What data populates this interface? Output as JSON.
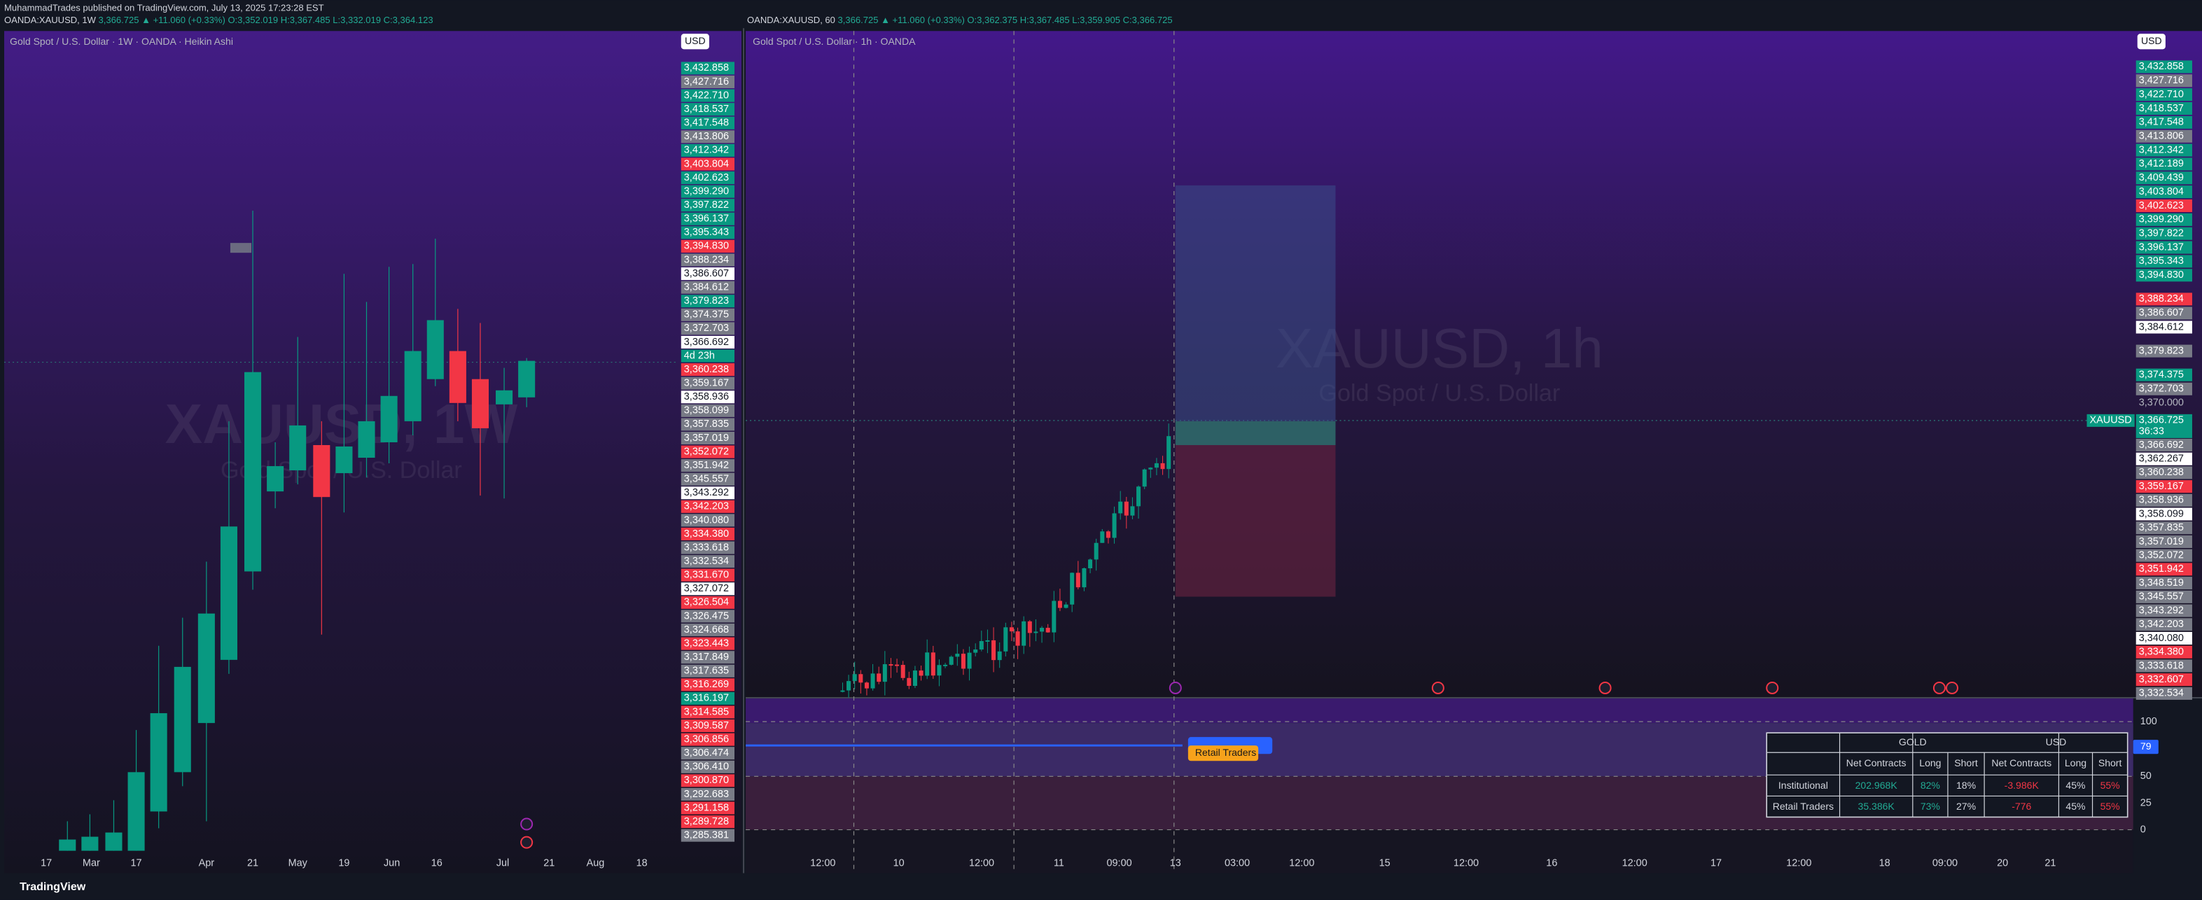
{
  "header": {
    "publisher": "MuhammadTrades published on TradingView.com, July 13, 2025 17:23:28 EST"
  },
  "left": {
    "legend": {
      "symbol": "OANDA:XAUUSD, 1W",
      "price": "3,366.725",
      "change": "▲ +11.060 (+0.33%)",
      "ohlc": [
        "O:3,352.019",
        "H:3,367.485",
        "L:3,332.019",
        "C:3,364.123"
      ]
    },
    "title": "Gold Spot / U.S. Dollar · 1W · OANDA · Heikin Ashi",
    "watermark": "XAUUSD, 1W",
    "watermark_sub": "Gold Spot / U.S. Dollar",
    "currency": "USD",
    "price_labels": [
      "3,432.858",
      "3,427.716",
      "3,422.710",
      "3,418.537",
      "3,417.548",
      "3,413.806",
      "3,412.342",
      "3,403.804",
      "3,402.623",
      "3,399.290",
      "3,397.822",
      "3,396.137",
      "3,395.343",
      "3,394.830",
      "3,388.234",
      "3,386.607",
      "3,384.612",
      "3,379.823",
      "3,374.375",
      "3,372.703",
      "3,366.692",
      "4d 23h",
      "3,360.238",
      "3,359.167",
      "3,358.936",
      "3,358.099",
      "3,357.835",
      "3,357.019",
      "3,352.072",
      "3,351.942",
      "3,345.557",
      "3,343.292",
      "3,342.203",
      "3,340.080",
      "3,334.380",
      "3,333.618",
      "3,332.534",
      "3,331.670",
      "3,327.072",
      "3,326.504",
      "3,326.475",
      "3,324.668",
      "3,323.443",
      "3,317.849",
      "3,317.635",
      "3,316.269",
      "3,316.197",
      "3,314.585",
      "3,309.587",
      "3,306.856",
      "3,306.474",
      "3,306.410",
      "3,300.870",
      "3,292.683",
      "3,291.158",
      "3,289.728",
      "3,285.381"
    ],
    "time_labels": [
      "17",
      "Mar",
      "17",
      "Apr",
      "21",
      "May",
      "19",
      "Jun",
      "16",
      "Jul",
      "21",
      "Aug",
      "18"
    ]
  },
  "right": {
    "legend": {
      "symbol": "OANDA:XAUUSD, 60",
      "price": "3,366.725",
      "change": "▲ +11.060 (+0.33%)",
      "ohlc": [
        "O:3,362.375",
        "H:3,367.485",
        "L:3,359.905",
        "C:3,366.725"
      ]
    },
    "title": "Gold Spot / U.S. Dollar · 1h · OANDA",
    "watermark": "XAUUSD, 1h",
    "watermark_sub": "Gold Spot / U.S. Dollar",
    "currency": "USD",
    "price_labels": [
      "3,432.858",
      "3,427.716",
      "3,422.710",
      "3,418.537",
      "3,417.548",
      "3,413.806",
      "3,412.342",
      "3,412.189",
      "3,409.439",
      "3,403.804",
      "3,402.623",
      "3,399.290",
      "3,397.822",
      "3,396.137",
      "3,395.343",
      "3,394.830",
      "3,388.234",
      "3,386.607",
      "3,384.612",
      "3,379.823",
      "3,374.375",
      "3,372.703",
      "3,370.000",
      "3,366.692",
      "3,362.267",
      "3,360.238",
      "3,359.167",
      "3,358.936",
      "3,358.099",
      "3,357.835",
      "3,357.019",
      "3,352.072",
      "3,351.942",
      "3,348.519",
      "3,345.557",
      "3,343.292",
      "3,342.203",
      "3,340.080",
      "3,334.380",
      "3,333.618",
      "3,332.607",
      "3,332.534"
    ],
    "last_price": {
      "symbol": "XAUUSD",
      "price": "3,366.725",
      "countdown": "36:33"
    },
    "time_labels": [
      "12:00",
      "10",
      "12:00",
      "11",
      "09:00",
      "13",
      "03:00",
      "12:00",
      "15",
      "12:00",
      "16",
      "12:00",
      "17",
      "12:00",
      "18",
      "09:00",
      "20",
      "21"
    ],
    "oscillator_labels": [
      "100",
      "50",
      "25",
      "0"
    ],
    "oscillator_value": "79",
    "retail_label": "Retail Traders",
    "table": {
      "groups": [
        "GOLD",
        "USD"
      ],
      "columns": [
        "Net Contracts",
        "Long",
        "Short",
        "Net Contracts",
        "Long",
        "Short"
      ],
      "rows": [
        [
          "Institutional",
          "202.968K",
          "82%",
          "18%",
          "-3.986K",
          "45%",
          "55%"
        ],
        [
          "Retail Traders",
          "35.386K",
          "73%",
          "27%",
          "-776",
          "45%",
          "55%"
        ]
      ]
    }
  },
  "footer": {
    "brand": "TradingView"
  }
}
